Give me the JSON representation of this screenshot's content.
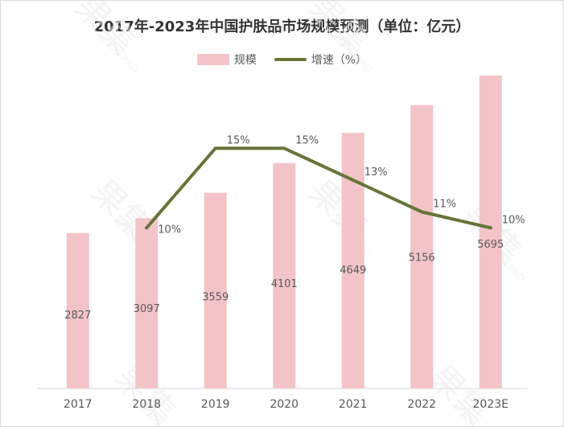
{
  "chart_data": {
    "type": "bar",
    "title": "2017年-2023年中国护肤品市场规模预测（单位：亿元）",
    "categories": [
      "2017",
      "2018",
      "2019",
      "2020",
      "2021",
      "2022",
      "2023E"
    ],
    "series": [
      {
        "name": "规模",
        "type": "bar",
        "values": [
          2827,
          3097,
          3559,
          4101,
          4649,
          5156,
          5695
        ],
        "labels": [
          "2827",
          "3097",
          "3559",
          "4101",
          "4649",
          "5156",
          "5695"
        ]
      },
      {
        "name": "增速（%）",
        "type": "line",
        "values": [
          null,
          10,
          15,
          15,
          13,
          11,
          10
        ],
        "labels": [
          "",
          "10%",
          "15%",
          "15%",
          "13%",
          "11%",
          "10%"
        ]
      }
    ],
    "xlabel": "",
    "ylabel": "",
    "grid": false,
    "legend": "top-center",
    "colors": {
      "bar": "#f2c4c8",
      "line": "#667538",
      "text": "#595959",
      "title": "#333333",
      "axis": "#d9d9d9"
    }
  },
  "watermark": {
    "text": "果集",
    "subtext": "GUOJI.PRO"
  }
}
